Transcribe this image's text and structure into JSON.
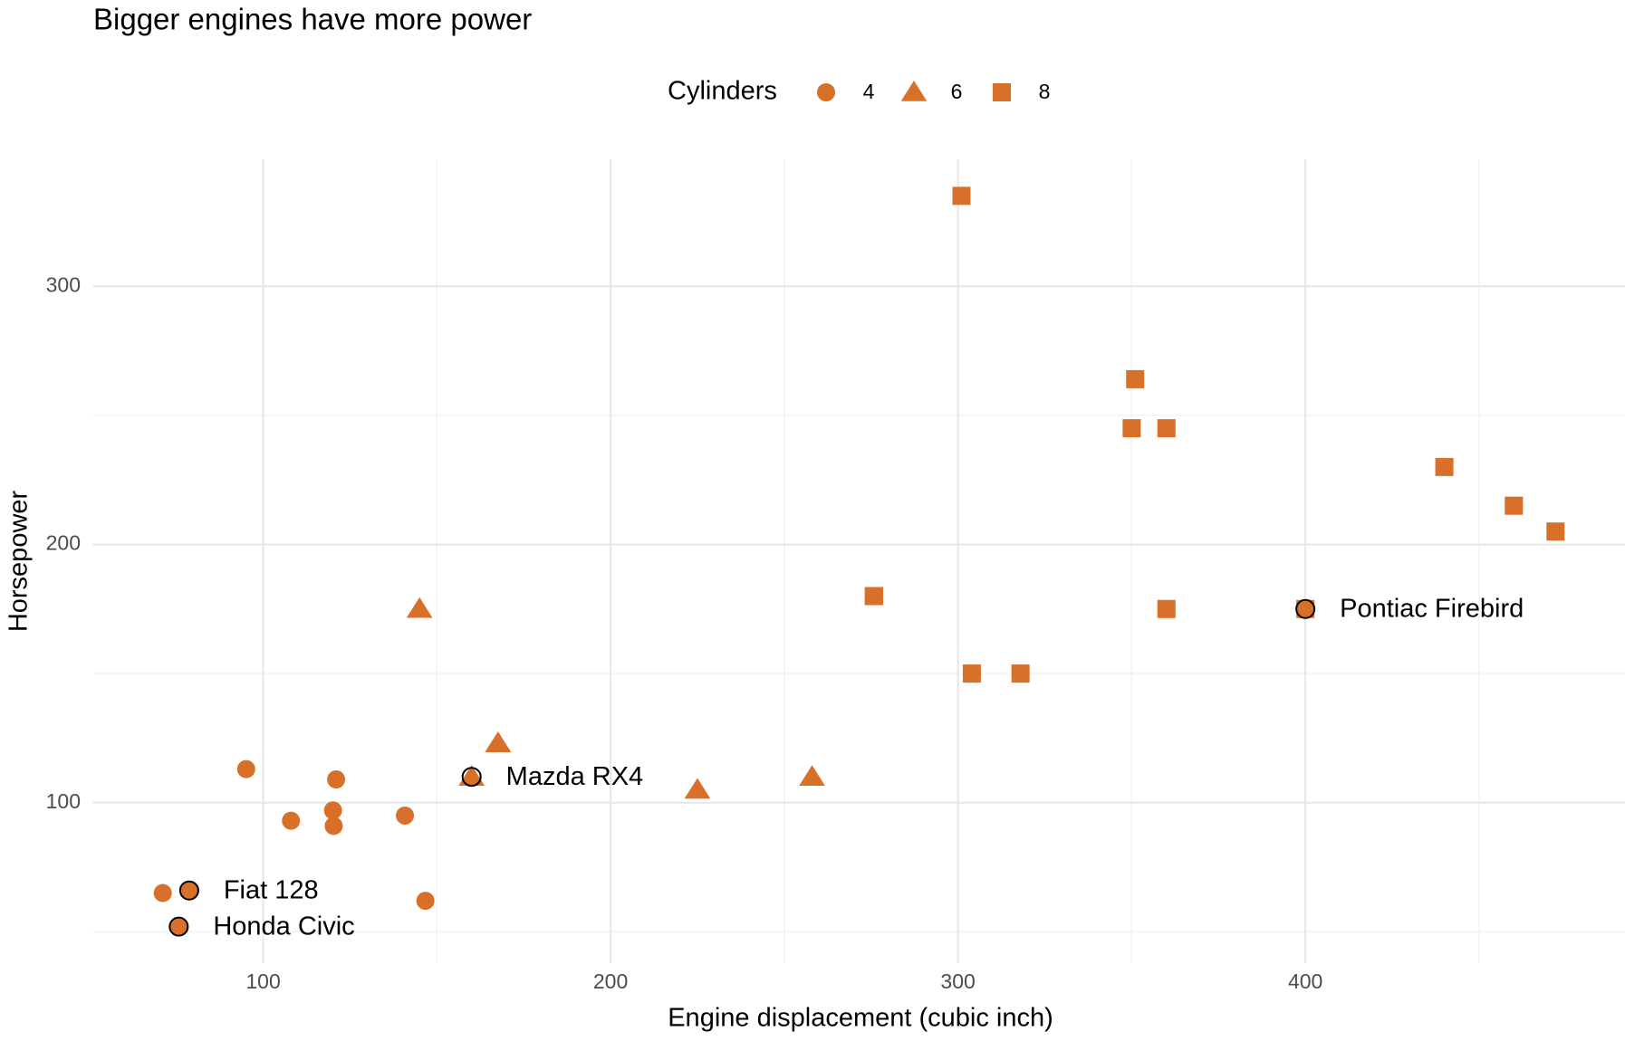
{
  "chart_data": {
    "type": "scatter",
    "title": "Bigger engines have more power",
    "x_label": "Engine displacement (cubic inch)",
    "y_label": "Horsepower",
    "legend_title": "Cylinders",
    "legend_position": "top",
    "grid": true,
    "xlim": [
      51.1,
      492
    ],
    "ylim": [
      37.85,
      349.15
    ],
    "xticks": [
      100,
      200,
      300,
      400
    ],
    "yticks": [
      100,
      200,
      300
    ],
    "x_minor_grid": [
      150,
      250,
      350,
      450
    ],
    "y_minor_grid": [
      50,
      150,
      250
    ],
    "series": [
      {
        "name": "4",
        "shape": "circle",
        "color": "#d8702a",
        "x": [
          108,
          146.7,
          140.8,
          78.7,
          75.7,
          71.1,
          120.1,
          79,
          120.3,
          95.1,
          121
        ],
        "y": [
          93,
          62,
          95,
          66,
          52,
          65,
          97,
          66,
          91,
          113,
          109
        ]
      },
      {
        "name": "6",
        "shape": "triangle",
        "color": "#d8702a",
        "x": [
          160,
          160,
          258,
          225,
          167.6,
          167.6,
          145
        ],
        "y": [
          110,
          110,
          110,
          105,
          123,
          123,
          175
        ]
      },
      {
        "name": "8",
        "shape": "square",
        "color": "#d8702a",
        "x": [
          360,
          360,
          275.8,
          275.8,
          275.8,
          472,
          460,
          440,
          318,
          304,
          350,
          400,
          351,
          301
        ],
        "y": [
          175,
          245,
          180,
          180,
          180,
          205,
          215,
          230,
          150,
          150,
          245,
          175,
          264,
          335
        ]
      }
    ],
    "highlights": [
      {
        "label": "Fiat 128",
        "x": 78.7,
        "y": 66
      },
      {
        "label": "Honda Civic",
        "x": 75.7,
        "y": 52
      },
      {
        "label": "Mazda RX4",
        "x": 160,
        "y": 110
      },
      {
        "label": "Pontiac Firebird",
        "x": 400,
        "y": 175
      }
    ]
  }
}
